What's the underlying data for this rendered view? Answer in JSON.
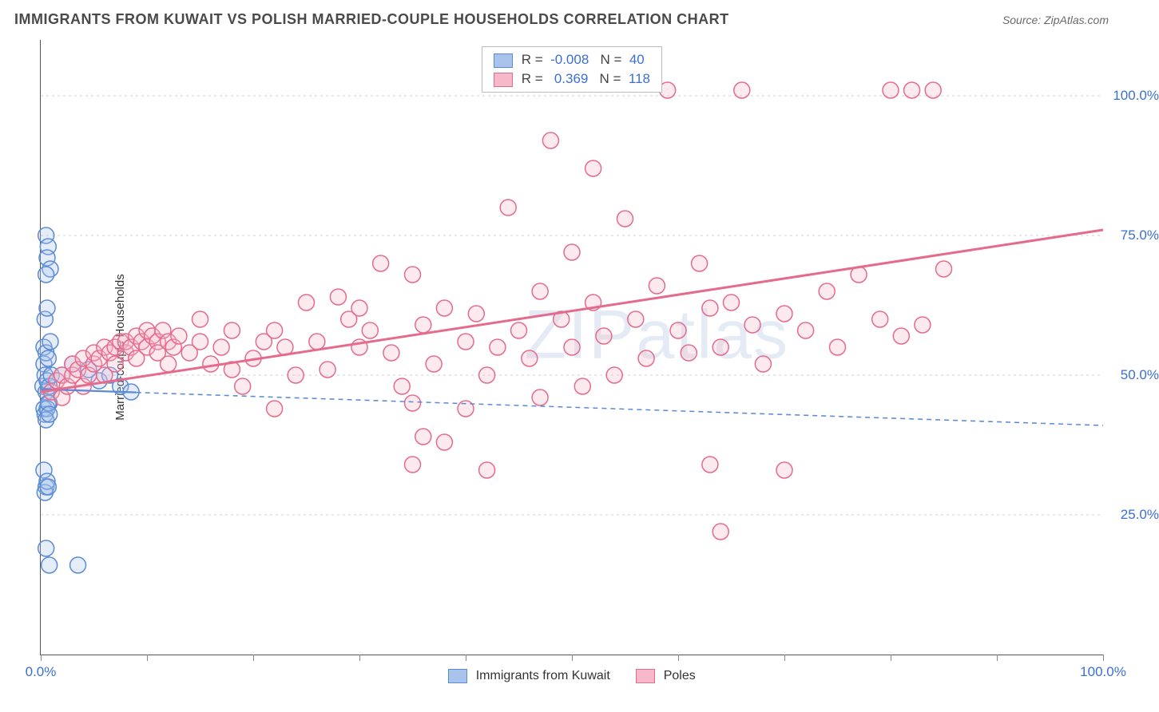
{
  "title": "IMMIGRANTS FROM KUWAIT VS POLISH MARRIED-COUPLE HOUSEHOLDS CORRELATION CHART",
  "source_label": "Source: ZipAtlas.com",
  "y_axis_label": "Married-couple Households",
  "watermark": "ZIPatlas",
  "chart": {
    "type": "scatter",
    "xlim": [
      0,
      100
    ],
    "ylim": [
      0,
      110
    ],
    "x_ticks": [
      0,
      10,
      20,
      30,
      40,
      50,
      60,
      70,
      80,
      90,
      100
    ],
    "x_tick_labels": {
      "0": "0.0%",
      "100": "100.0%"
    },
    "y_ticks": [
      25,
      50,
      75,
      100
    ],
    "y_tick_labels": {
      "25": "25.0%",
      "50": "50.0%",
      "75": "75.0%",
      "100": "100.0%"
    },
    "y_tick_label_color": "#3b6fd6",
    "x_tick_label_color": "#3b6fd6",
    "background_color": "#ffffff",
    "grid_color": "#d0d0d0",
    "axis_color": "#555555",
    "marker_radius": 10,
    "marker_stroke_width": 1.5,
    "marker_fill_opacity": 0.3,
    "series": [
      {
        "name": "Immigrants from Kuwait",
        "key": "kuwait",
        "color_stroke": "#5b8bd4",
        "color_fill": "#a9c4ec",
        "R": "-0.008",
        "N": "40",
        "trend": {
          "x1": 0,
          "y1": 47.5,
          "x2": 100,
          "y2": 41.0,
          "solid_until_x": 9,
          "dash": "6,5",
          "width": 2.2
        },
        "points": [
          [
            0.2,
            48
          ],
          [
            0.3,
            52
          ],
          [
            0.3,
            55
          ],
          [
            0.4,
            50
          ],
          [
            0.5,
            54
          ],
          [
            0.5,
            47
          ],
          [
            0.6,
            49
          ],
          [
            0.7,
            53
          ],
          [
            0.8,
            48
          ],
          [
            0.8,
            45
          ],
          [
            0.9,
            56
          ],
          [
            1.0,
            50
          ],
          [
            0.3,
            44
          ],
          [
            0.4,
            43
          ],
          [
            0.6,
            44
          ],
          [
            0.7,
            45
          ],
          [
            0.5,
            42
          ],
          [
            0.8,
            43
          ],
          [
            0.4,
            60
          ],
          [
            0.6,
            62
          ],
          [
            0.5,
            75
          ],
          [
            0.7,
            73
          ],
          [
            0.6,
            71
          ],
          [
            0.9,
            69
          ],
          [
            0.5,
            68
          ],
          [
            0.3,
            33
          ],
          [
            0.5,
            30
          ],
          [
            0.4,
            29
          ],
          [
            0.6,
            31
          ],
          [
            0.7,
            30
          ],
          [
            0.5,
            19
          ],
          [
            0.8,
            16
          ],
          [
            3.5,
            16
          ],
          [
            2.0,
            50
          ],
          [
            3.0,
            52
          ],
          [
            4.5,
            51
          ],
          [
            5.5,
            49
          ],
          [
            6.5,
            50
          ],
          [
            7.5,
            48
          ],
          [
            8.5,
            47
          ]
        ]
      },
      {
        "name": "Poles",
        "key": "poles",
        "color_stroke": "#e56b8c",
        "color_fill": "#f5b9c9",
        "R": "0.369",
        "N": "118",
        "trend": {
          "x1": 0,
          "y1": 47.0,
          "x2": 100,
          "y2": 76.0,
          "solid_until_x": 100,
          "dash": "",
          "width": 3
        },
        "points": [
          [
            1,
            47
          ],
          [
            1.5,
            49
          ],
          [
            2,
            50
          ],
          [
            2,
            46
          ],
          [
            2.5,
            48
          ],
          [
            3,
            50
          ],
          [
            3,
            52
          ],
          [
            3.5,
            51
          ],
          [
            4,
            53
          ],
          [
            4,
            48
          ],
          [
            4.5,
            50
          ],
          [
            5,
            52
          ],
          [
            5,
            54
          ],
          [
            5.5,
            53
          ],
          [
            6,
            55
          ],
          [
            6,
            50
          ],
          [
            6.5,
            54
          ],
          [
            7,
            55
          ],
          [
            7,
            52
          ],
          [
            7.5,
            56
          ],
          [
            8,
            54
          ],
          [
            8,
            56
          ],
          [
            8.5,
            55
          ],
          [
            9,
            57
          ],
          [
            9,
            53
          ],
          [
            9.5,
            56
          ],
          [
            10,
            55
          ],
          [
            10,
            58
          ],
          [
            10.5,
            57
          ],
          [
            11,
            56
          ],
          [
            11,
            54
          ],
          [
            11.5,
            58
          ],
          [
            12,
            56
          ],
          [
            12,
            52
          ],
          [
            12.5,
            55
          ],
          [
            13,
            57
          ],
          [
            14,
            54
          ],
          [
            15,
            56
          ],
          [
            15,
            60
          ],
          [
            16,
            52
          ],
          [
            17,
            55
          ],
          [
            18,
            58
          ],
          [
            18,
            51
          ],
          [
            19,
            48
          ],
          [
            20,
            53
          ],
          [
            21,
            56
          ],
          [
            22,
            44
          ],
          [
            22,
            58
          ],
          [
            23,
            55
          ],
          [
            24,
            50
          ],
          [
            25,
            63
          ],
          [
            26,
            56
          ],
          [
            27,
            51
          ],
          [
            28,
            64
          ],
          [
            29,
            60
          ],
          [
            30,
            55
          ],
          [
            30,
            62
          ],
          [
            31,
            58
          ],
          [
            32,
            70
          ],
          [
            33,
            54
          ],
          [
            34,
            48
          ],
          [
            35,
            68
          ],
          [
            35,
            45
          ],
          [
            36,
            59
          ],
          [
            36,
            39
          ],
          [
            37,
            52
          ],
          [
            38,
            62
          ],
          [
            38,
            38
          ],
          [
            40,
            56
          ],
          [
            40,
            44
          ],
          [
            41,
            61
          ],
          [
            42,
            50
          ],
          [
            42,
            33
          ],
          [
            43,
            55
          ],
          [
            44,
            80
          ],
          [
            45,
            58
          ],
          [
            46,
            53
          ],
          [
            47,
            65
          ],
          [
            47,
            46
          ],
          [
            48,
            92
          ],
          [
            49,
            60
          ],
          [
            50,
            55
          ],
          [
            50,
            72
          ],
          [
            51,
            48
          ],
          [
            52,
            63
          ],
          [
            52,
            87
          ],
          [
            53,
            57
          ],
          [
            54,
            50
          ],
          [
            55,
            78
          ],
          [
            56,
            60
          ],
          [
            57,
            53
          ],
          [
            58,
            66
          ],
          [
            59,
            101
          ],
          [
            60,
            58
          ],
          [
            61,
            54
          ],
          [
            62,
            70
          ],
          [
            63,
            62
          ],
          [
            63,
            34
          ],
          [
            64,
            55
          ],
          [
            65,
            63
          ],
          [
            66,
            101
          ],
          [
            67,
            59
          ],
          [
            68,
            52
          ],
          [
            70,
            61
          ],
          [
            70,
            33
          ],
          [
            72,
            58
          ],
          [
            74,
            65
          ],
          [
            75,
            55
          ],
          [
            77,
            68
          ],
          [
            79,
            60
          ],
          [
            80,
            101
          ],
          [
            81,
            57
          ],
          [
            82,
            101
          ],
          [
            83,
            59
          ],
          [
            84,
            101
          ],
          [
            85,
            69
          ],
          [
            64,
            22
          ],
          [
            35,
            34
          ]
        ]
      }
    ]
  },
  "bottom_legend": [
    {
      "swatch_fill": "#a9c4ec",
      "swatch_stroke": "#5b8bd4",
      "label": "Immigrants from Kuwait"
    },
    {
      "swatch_fill": "#f5b9c9",
      "swatch_stroke": "#e56b8c",
      "label": "Poles"
    }
  ]
}
